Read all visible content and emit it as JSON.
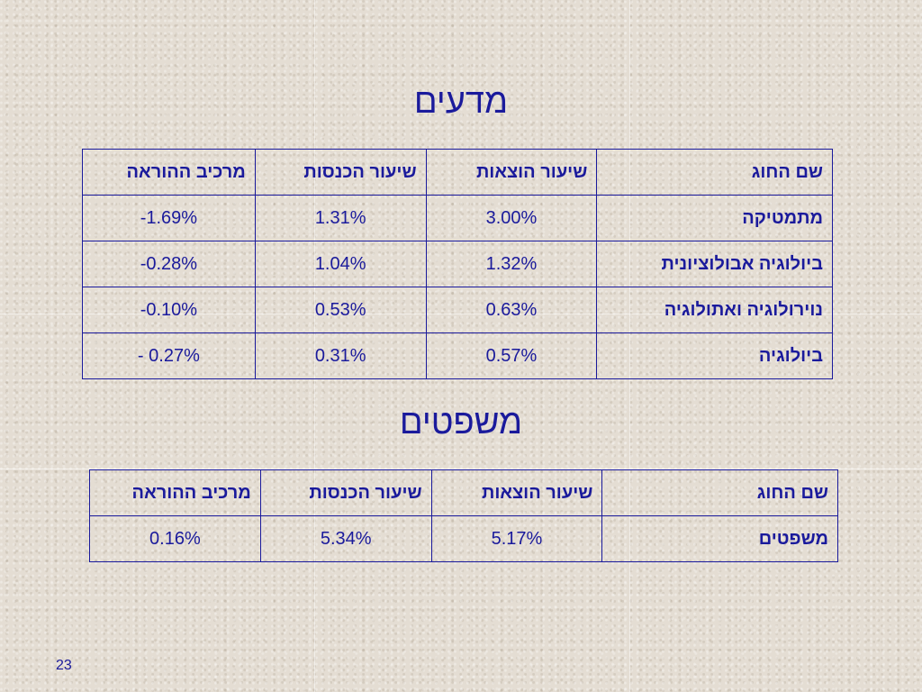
{
  "sciences": {
    "title": "מדעים",
    "headers": [
      "שם החוג",
      "שיעור הוצאות",
      "שיעור הכנסות",
      "מרכיב ההוראה"
    ],
    "rows": [
      {
        "name": "מתמטיקה",
        "expenses": "3.00%",
        "income": "1.31%",
        "teaching": "-1.69%"
      },
      {
        "name": "ביולוגיה אבולוציונית",
        "expenses": "1.32%",
        "income": "1.04%",
        "teaching": "-0.28%"
      },
      {
        "name": "נוירולוגיה ואתולוגיה",
        "expenses": "0.63%",
        "income": "0.53%",
        "teaching": "-0.10%"
      },
      {
        "name": "ביולוגיה",
        "expenses": "0.57%",
        "income": "0.31%",
        "teaching": "- 0.27%"
      }
    ]
  },
  "law": {
    "title": "משפטים",
    "headers": [
      "שם החוג",
      "שיעור הוצאות",
      "שיעור הכנסות",
      "מרכיב ההוראה"
    ],
    "rows": [
      {
        "name": "משפטים",
        "expenses": "5.17%",
        "income": "5.34%",
        "teaching": "0.16%"
      }
    ]
  },
  "page_number": "23"
}
